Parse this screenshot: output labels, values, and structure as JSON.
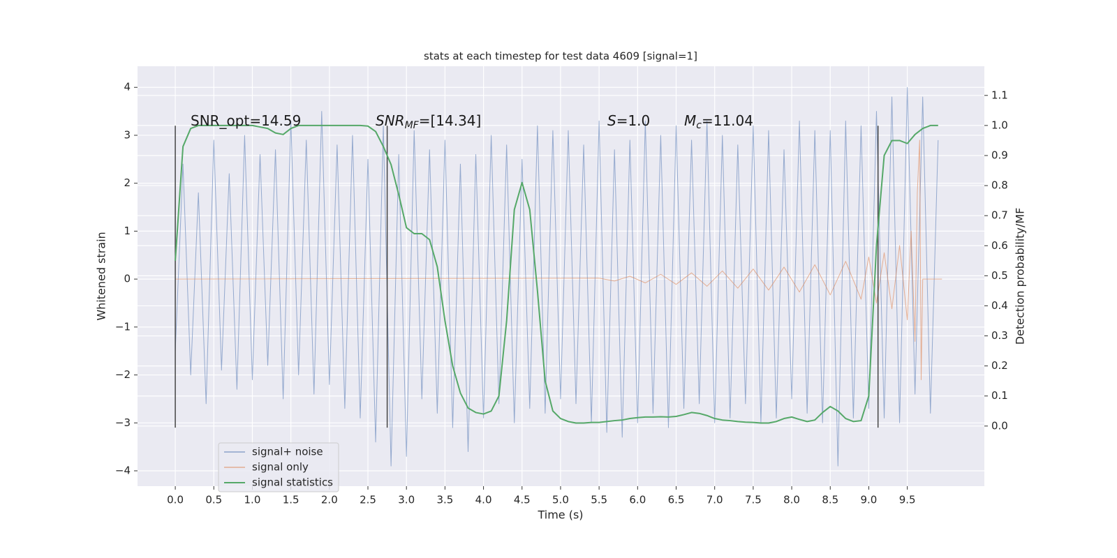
{
  "chart_data": {
    "type": "line",
    "title": "stats at each timestep for test data 4609 [signal=1]",
    "x_label": "Time (s)",
    "y_label": "Whitened strain",
    "y2_label": "Detection probability/MF",
    "grid": true,
    "legend": "lower left",
    "x": [
      0.0,
      0.1,
      0.2,
      0.3,
      0.4,
      0.5,
      0.6,
      0.7,
      0.8,
      0.9,
      1.0,
      1.1,
      1.2,
      1.3,
      1.4,
      1.5,
      1.6,
      1.7,
      1.8,
      1.9,
      2.0,
      2.1,
      2.2,
      2.3,
      2.4,
      2.5,
      2.6,
      2.7,
      2.8,
      2.9,
      3.0,
      3.1,
      3.2,
      3.3,
      3.4,
      3.5,
      3.6,
      3.7,
      3.8,
      3.9,
      4.0,
      4.1,
      4.2,
      4.3,
      4.4,
      4.5,
      4.6,
      4.7,
      4.8,
      4.9,
      5.0,
      5.1,
      5.2,
      5.3,
      5.4,
      5.5,
      5.6,
      5.7,
      5.8,
      5.9,
      6.0,
      6.1,
      6.2,
      6.3,
      6.4,
      6.5,
      6.6,
      6.7,
      6.8,
      6.9,
      7.0,
      7.1,
      7.2,
      7.3,
      7.4,
      7.5,
      7.6,
      7.7,
      7.8,
      7.9,
      8.0,
      8.1,
      8.2,
      8.3,
      8.4,
      8.5,
      8.6,
      8.7,
      8.8,
      8.9,
      9.0,
      9.1,
      9.2,
      9.3,
      9.4,
      9.5,
      9.6,
      9.7,
      9.8,
      9.9
    ],
    "series": [
      {
        "name": "signal+ noise",
        "color": "#4c72b0",
        "values": [
          -1.5,
          2.4,
          -2.0,
          1.8,
          -2.6,
          2.9,
          -1.9,
          2.2,
          -2.3,
          3.0,
          -2.1,
          2.6,
          -1.8,
          2.7,
          -2.5,
          3.3,
          -2.0,
          2.9,
          -2.4,
          3.5,
          -2.2,
          2.8,
          -2.7,
          3.0,
          -2.9,
          2.5,
          -3.4,
          3.2,
          -3.9,
          2.6,
          -3.7,
          3.1,
          -2.5,
          2.7,
          -2.8,
          2.9,
          -3.1,
          2.4,
          -3.6,
          2.6,
          -2.9,
          3.0,
          -2.6,
          2.8,
          -3.0,
          2.5,
          -2.7,
          3.2,
          -2.8,
          3.1,
          -2.5,
          3.1,
          -2.6,
          2.8,
          -3.0,
          3.3,
          -3.2,
          2.7,
          -3.3,
          2.9,
          -3.0,
          3.3,
          -2.8,
          3.0,
          -3.1,
          3.2,
          -2.7,
          2.9,
          -2.6,
          3.3,
          -3.0,
          3.0,
          -2.9,
          2.8,
          -2.6,
          3.2,
          -3.0,
          3.1,
          -2.9,
          2.7,
          -2.5,
          3.3,
          -2.8,
          3.1,
          -3.0,
          3.1,
          -3.9,
          3.3,
          -2.9,
          3.2,
          -2.7,
          3.5,
          -2.9,
          3.8,
          -3.0,
          4.0,
          -2.4,
          3.8,
          -2.8,
          2.9
        ]
      },
      {
        "name": "signal only",
        "color": "#dd8452",
        "x": [
          0,
          5.5,
          5.7,
          5.9,
          6.1,
          6.3,
          6.5,
          6.7,
          6.9,
          7.1,
          7.3,
          7.5,
          7.7,
          7.9,
          8.1,
          8.3,
          8.5,
          8.7,
          8.9,
          9.0,
          9.1,
          9.2,
          9.3,
          9.4,
          9.5,
          9.55,
          9.6,
          9.63,
          9.66,
          9.68,
          9.7,
          9.95
        ],
        "values": [
          0,
          0.02,
          -0.04,
          0.06,
          -0.08,
          0.1,
          -0.11,
          0.13,
          -0.15,
          0.17,
          -0.19,
          0.21,
          -0.23,
          0.25,
          -0.27,
          0.3,
          -0.33,
          0.37,
          -0.42,
          0.46,
          -0.5,
          0.55,
          -0.62,
          0.7,
          -0.85,
          1.0,
          -1.3,
          1.8,
          2.9,
          -2.1,
          0,
          0
        ]
      },
      {
        "name": "signal statistics",
        "color": "#55a868",
        "axis": "y2",
        "values": [
          0.55,
          0.93,
          0.99,
          1.0,
          1.0,
          1.0,
          1.0,
          1.0,
          1.0,
          1.0,
          1.0,
          0.995,
          0.99,
          0.975,
          0.97,
          0.99,
          1.0,
          1.0,
          1.0,
          1.0,
          1.0,
          1.0,
          1.0,
          1.0,
          1.0,
          0.998,
          0.98,
          0.93,
          0.87,
          0.77,
          0.66,
          0.64,
          0.64,
          0.62,
          0.53,
          0.35,
          0.2,
          0.11,
          0.06,
          0.045,
          0.04,
          0.05,
          0.1,
          0.35,
          0.72,
          0.81,
          0.72,
          0.45,
          0.15,
          0.05,
          0.025,
          0.015,
          0.01,
          0.01,
          0.012,
          0.012,
          0.015,
          0.018,
          0.02,
          0.025,
          0.028,
          0.03,
          0.03,
          0.031,
          0.03,
          0.032,
          0.038,
          0.045,
          0.042,
          0.035,
          0.025,
          0.02,
          0.018,
          0.015,
          0.013,
          0.012,
          0.01,
          0.01,
          0.015,
          0.025,
          0.03,
          0.022,
          0.015,
          0.02,
          0.045,
          0.065,
          0.05,
          0.025,
          0.015,
          0.018,
          0.1,
          0.6,
          0.9,
          0.95,
          0.95,
          0.94,
          0.97,
          0.99,
          1.0,
          1.0
        ]
      }
    ],
    "vlines": {
      "x": [
        0,
        2.75,
        9.12
      ],
      "ymin": -3.1,
      "ymax": 3.2,
      "color": "#444444"
    },
    "annotations": [
      {
        "text": "SNR_opt=14.59"
      },
      {
        "base": "SNR",
        "sub": "MF",
        "text": "=[14.34]"
      },
      {
        "base": "S",
        "text": "=1.0"
      },
      {
        "base": "M",
        "sub": "c",
        "text": "=11.04"
      }
    ],
    "xlim": [
      -0.49,
      10.5
    ],
    "ylim": [
      -4.32,
      4.44
    ],
    "y2lim": [
      -0.2,
      1.197
    ],
    "xticks": [
      {
        "value": 0,
        "label": "0.0"
      },
      {
        "value": 0.5,
        "label": "0.5"
      },
      {
        "value": 1,
        "label": "1.0"
      },
      {
        "value": 1.5,
        "label": "1.5"
      },
      {
        "value": 2,
        "label": "2.0"
      },
      {
        "value": 2.5,
        "label": "2.5"
      },
      {
        "value": 3,
        "label": "3.0"
      },
      {
        "value": 3.5,
        "label": "3.5"
      },
      {
        "value": 4,
        "label": "4.0"
      },
      {
        "value": 4.5,
        "label": "4.5"
      },
      {
        "value": 5,
        "label": "5.0"
      },
      {
        "value": 5.5,
        "label": "5.5"
      },
      {
        "value": 6,
        "label": "6.0"
      },
      {
        "value": 6.5,
        "label": "6.5"
      },
      {
        "value": 7,
        "label": "7.0"
      },
      {
        "value": 7.5,
        "label": "7.5"
      },
      {
        "value": 8,
        "label": "8.0"
      },
      {
        "value": 8.5,
        "label": "8.5"
      },
      {
        "value": 9,
        "label": "9.0"
      },
      {
        "value": 9.5,
        "label": "9.5"
      }
    ],
    "yticks": [
      {
        "value": -4,
        "label": "−4"
      },
      {
        "value": -3,
        "label": "−3"
      },
      {
        "value": -2,
        "label": "−2"
      },
      {
        "value": -1,
        "label": "−1"
      },
      0,
      1,
      2,
      3,
      4
    ],
    "y2ticks": [
      {
        "value": 0,
        "label": "0.0"
      },
      {
        "value": 0.1,
        "label": "0.1"
      },
      {
        "value": 0.2,
        "label": "0.2"
      },
      {
        "value": 0.3,
        "label": "0.3"
      },
      {
        "value": 0.4,
        "label": "0.4"
      },
      {
        "value": 0.5,
        "label": "0.5"
      },
      {
        "value": 0.6,
        "label": "0.6"
      },
      {
        "value": 0.7,
        "label": "0.7"
      },
      {
        "value": 0.8,
        "label": "0.8"
      },
      {
        "value": 0.9,
        "label": "0.9"
      },
      {
        "value": 1.0,
        "label": "1.0"
      },
      {
        "value": 1.1,
        "label": "1.1"
      }
    ]
  }
}
